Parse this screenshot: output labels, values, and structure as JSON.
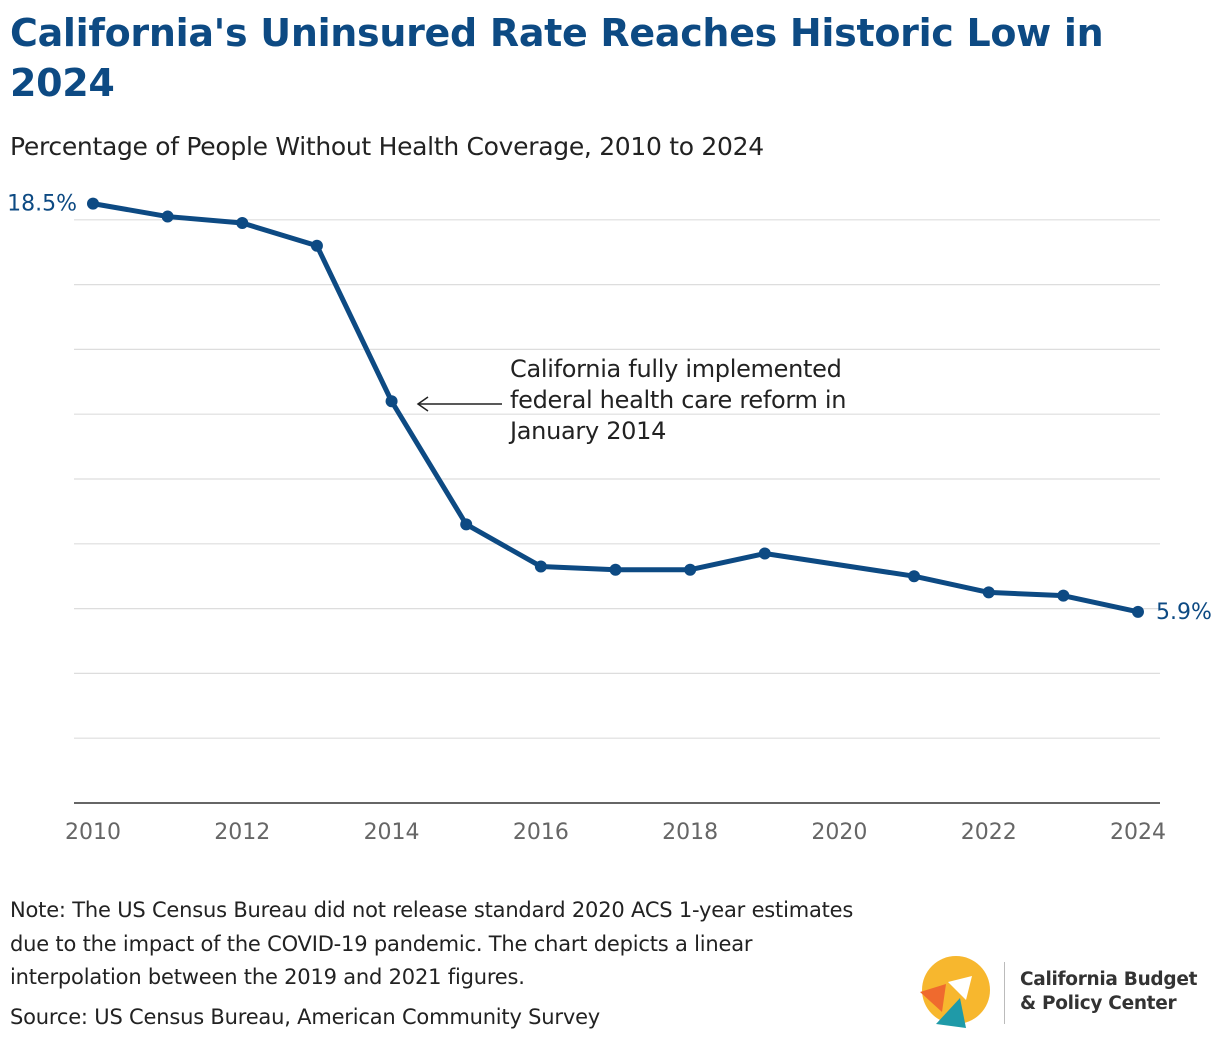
{
  "title": "California's Uninsured Rate Reaches Historic Low in 2024",
  "subtitle": "Percentage of People Without Health Coverage, 2010 to 2024",
  "chart_data": {
    "type": "line",
    "title": "California's Uninsured Rate Reaches Historic Low in 2024",
    "subtitle": "Percentage of People Without Health Coverage, 2010 to 2024",
    "xlabel": "",
    "ylabel": "",
    "xlim": [
      2010,
      2024
    ],
    "ylim": [
      0,
      20
    ],
    "grid": true,
    "x_ticks": [
      2010,
      2012,
      2014,
      2016,
      2018,
      2020,
      2022,
      2024
    ],
    "x_tick_labels": [
      "2010",
      "2012",
      "2014",
      "2016",
      "2018",
      "2020",
      "2022",
      "2024"
    ],
    "series": [
      {
        "name": "Uninsured rate",
        "color": "#0d4a83",
        "x": [
          2010,
          2011,
          2012,
          2013,
          2014,
          2015,
          2016,
          2017,
          2018,
          2019,
          2021,
          2022,
          2023,
          2024
        ],
        "values": [
          18.5,
          18.1,
          17.9,
          17.2,
          12.4,
          8.6,
          7.3,
          7.2,
          7.2,
          7.7,
          7.0,
          6.5,
          6.4,
          5.9
        ]
      }
    ],
    "data_labels": [
      {
        "x": 2010,
        "text": "18.5%"
      },
      {
        "x": 2024,
        "text": "5.9%"
      }
    ],
    "annotation": {
      "x": 2014,
      "lines": [
        "California fully implemented",
        "federal health care reform in",
        "January 2014"
      ]
    }
  },
  "note": "Note: The US Census Bureau did not release standard 2020 ACS 1-year estimates due to the impact of the COVID-19 pandemic. The chart depicts a linear interpolation between the 2019 and 2021 figures.",
  "source": "Source: US Census Bureau, American Community Survey",
  "logo": {
    "line1": "California Budget",
    "line2": "& Policy Center"
  },
  "colors": {
    "title": "#0d4a83",
    "line": "#0d4a83",
    "grid": "#dddddd",
    "axis": "#333333",
    "tick_label": "#666666",
    "logo_yellow": "#f7b72e",
    "logo_orange": "#ef6a2e",
    "logo_teal": "#1f9aa8"
  }
}
